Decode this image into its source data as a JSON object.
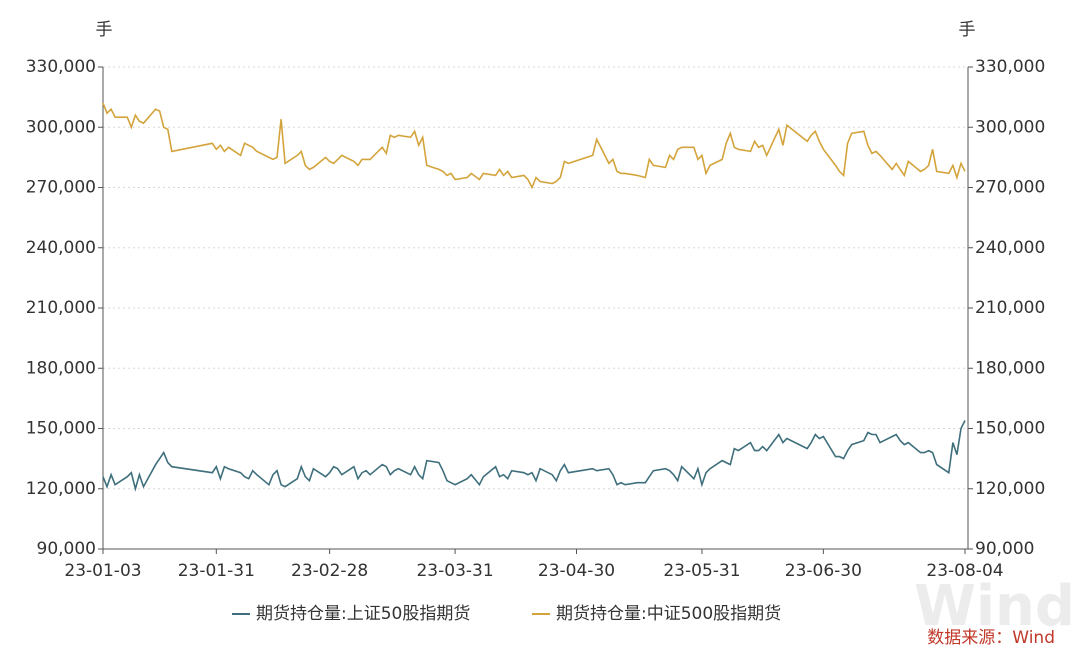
{
  "chart_data": {
    "type": "line",
    "y_label": "手",
    "y2_label": "手",
    "source": "数据来源：Wind",
    "watermark": "Wind",
    "grid": true,
    "legend": "bottom",
    "xlim": [
      "23-01-03",
      "23-08-04"
    ],
    "xticks": [
      "23-01-03",
      "23-01-31",
      "23-02-28",
      "23-03-31",
      "23-04-30",
      "23-05-31",
      "23-06-30",
      "23-08-04"
    ],
    "ylim": [
      90000,
      330000
    ],
    "yticks": [
      {
        "value": 90000,
        "label": "90,000"
      },
      {
        "value": 120000,
        "label": "120,000"
      },
      {
        "value": 150000,
        "label": "150,000"
      },
      {
        "value": 180000,
        "label": "180,000"
      },
      {
        "value": 210000,
        "label": "210,000"
      },
      {
        "value": 240000,
        "label": "240,000"
      },
      {
        "value": 270000,
        "label": "270,000"
      },
      {
        "value": 300000,
        "label": "300,000"
      },
      {
        "value": 330000,
        "label": "330,000"
      }
    ],
    "y2lim": [
      90000,
      330000
    ],
    "y2ticks": [
      {
        "value": 90000,
        "label": "90,000"
      },
      {
        "value": 120000,
        "label": "120,000"
      },
      {
        "value": 150000,
        "label": "150,000"
      },
      {
        "value": 180000,
        "label": "180,000"
      },
      {
        "value": 210000,
        "label": "210,000"
      },
      {
        "value": 240000,
        "label": "240,000"
      },
      {
        "value": 270000,
        "label": "270,000"
      },
      {
        "value": 300000,
        "label": "300,000"
      },
      {
        "value": 330000,
        "label": "330,000"
      }
    ],
    "x": [
      "23-01-03",
      "23-01-04",
      "23-01-05",
      "23-01-06",
      "23-01-09",
      "23-01-10",
      "23-01-11",
      "23-01-12",
      "23-01-13",
      "23-01-16",
      "23-01-17",
      "23-01-18",
      "23-01-19",
      "23-01-20",
      "23-01-30",
      "23-01-31",
      "23-02-01",
      "23-02-02",
      "23-02-03",
      "23-02-06",
      "23-02-07",
      "23-02-08",
      "23-02-09",
      "23-02-10",
      "23-02-13",
      "23-02-14",
      "23-02-15",
      "23-02-16",
      "23-02-17",
      "23-02-20",
      "23-02-21",
      "23-02-22",
      "23-02-23",
      "23-02-24",
      "23-02-27",
      "23-02-28",
      "23-03-01",
      "23-03-02",
      "23-03-03",
      "23-03-06",
      "23-03-07",
      "23-03-08",
      "23-03-09",
      "23-03-10",
      "23-03-13",
      "23-03-14",
      "23-03-15",
      "23-03-16",
      "23-03-17",
      "23-03-20",
      "23-03-21",
      "23-03-22",
      "23-03-23",
      "23-03-24",
      "23-03-27",
      "23-03-28",
      "23-03-29",
      "23-03-30",
      "23-03-31",
      "23-04-03",
      "23-04-04",
      "23-04-06",
      "23-04-07",
      "23-04-10",
      "23-04-11",
      "23-04-12",
      "23-04-13",
      "23-04-14",
      "23-04-17",
      "23-04-18",
      "23-04-19",
      "23-04-20",
      "23-04-21",
      "23-04-24",
      "23-04-25",
      "23-04-26",
      "23-04-27",
      "23-04-28",
      "23-05-04",
      "23-05-05",
      "23-05-08",
      "23-05-09",
      "23-05-10",
      "23-05-11",
      "23-05-12",
      "23-05-15",
      "23-05-17",
      "23-05-18",
      "23-05-19",
      "23-05-22",
      "23-05-23",
      "23-05-24",
      "23-05-25",
      "23-05-26",
      "23-05-29",
      "23-05-30",
      "23-05-31",
      "23-06-01",
      "23-06-02",
      "23-06-05",
      "23-06-06",
      "23-06-07",
      "23-06-08",
      "23-06-09",
      "23-06-12",
      "23-06-13",
      "23-06-14",
      "23-06-15",
      "23-06-16",
      "23-06-19",
      "23-06-20",
      "23-06-21",
      "23-06-26",
      "23-06-27",
      "23-06-28",
      "23-06-29",
      "23-06-30",
      "23-07-03",
      "23-07-04",
      "23-07-05",
      "23-07-06",
      "23-07-07",
      "23-07-10",
      "23-07-11",
      "23-07-12",
      "23-07-13",
      "23-07-14",
      "23-07-17",
      "23-07-18",
      "23-07-19",
      "23-07-20",
      "23-07-21",
      "23-07-24",
      "23-07-25",
      "23-07-26",
      "23-07-27",
      "23-07-28",
      "23-07-31",
      "23-08-01",
      "23-08-02",
      "23-08-03",
      "23-08-04"
    ],
    "series": [
      {
        "name": "期货持仓量:上证50股指期货",
        "color": "#3f6f7c",
        "values": [
          126000,
          121000,
          127000,
          122000,
          126000,
          128000,
          120000,
          127000,
          121000,
          132000,
          135000,
          138000,
          133000,
          131000,
          128000,
          131000,
          125000,
          131000,
          130000,
          128000,
          126000,
          125000,
          129000,
          127000,
          122000,
          127000,
          129000,
          122000,
          121000,
          125000,
          131000,
          126000,
          124000,
          130000,
          126000,
          128000,
          131000,
          130000,
          127000,
          131000,
          125000,
          128000,
          129000,
          127000,
          132000,
          131000,
          127000,
          129000,
          130000,
          127000,
          131000,
          127000,
          125000,
          134000,
          133000,
          129000,
          124000,
          123000,
          122000,
          125000,
          127000,
          122000,
          126000,
          131000,
          126000,
          127000,
          125000,
          129000,
          128000,
          127000,
          128000,
          124000,
          130000,
          127000,
          124000,
          129000,
          132000,
          128000,
          130000,
          129000,
          130000,
          127000,
          122000,
          123000,
          122000,
          123000,
          123000,
          126000,
          129000,
          130000,
          129000,
          127000,
          124000,
          131000,
          125000,
          130000,
          122000,
          128000,
          130000,
          134000,
          133000,
          132000,
          140000,
          139000,
          143000,
          139000,
          139000,
          141000,
          139000,
          147000,
          143000,
          145000,
          140000,
          143000,
          147000,
          145000,
          146000,
          136000,
          136000,
          135000,
          139000,
          142000,
          144000,
          148000,
          147000,
          147000,
          143000,
          146000,
          147000,
          144000,
          142000,
          143000,
          138000,
          138000,
          139000,
          138000,
          132000,
          128000,
          143000,
          137000,
          150000,
          154000
        ]
      },
      {
        "name": "期货持仓量:中证500股指期货",
        "color": "#d4a43c",
        "values": [
          312000,
          307000,
          309000,
          305000,
          305000,
          300000,
          306000,
          303000,
          302000,
          309000,
          308000,
          300000,
          299000,
          288000,
          292000,
          289000,
          291000,
          288000,
          290000,
          286000,
          292000,
          291000,
          290000,
          288000,
          285000,
          284000,
          285000,
          304000,
          282000,
          286000,
          288000,
          281000,
          279000,
          280000,
          285000,
          283000,
          282000,
          284000,
          286000,
          283000,
          281000,
          284000,
          284000,
          284000,
          290000,
          287000,
          296000,
          295000,
          296000,
          295000,
          298000,
          291000,
          295000,
          281000,
          279000,
          278000,
          276000,
          277000,
          274000,
          275000,
          277000,
          274000,
          277000,
          276000,
          279000,
          276000,
          278000,
          275000,
          276000,
          274000,
          270000,
          275000,
          273000,
          272000,
          273000,
          275000,
          283000,
          282000,
          286000,
          294000,
          282000,
          284000,
          278000,
          277000,
          277000,
          276000,
          275000,
          284000,
          281000,
          280000,
          286000,
          284000,
          289000,
          290000,
          290000,
          284000,
          286000,
          277000,
          281000,
          284000,
          292000,
          297000,
          290000,
          289000,
          288000,
          293000,
          290000,
          291000,
          286000,
          299000,
          291000,
          301000,
          293000,
          296000,
          298000,
          293000,
          289000,
          281000,
          278000,
          276000,
          292000,
          297000,
          298000,
          291000,
          287000,
          288000,
          286000,
          279000,
          282000,
          279000,
          276000,
          283000,
          278000,
          279000,
          281000,
          289000,
          278000,
          277000,
          281000,
          275000,
          282000,
          278000
        ]
      }
    ]
  }
}
